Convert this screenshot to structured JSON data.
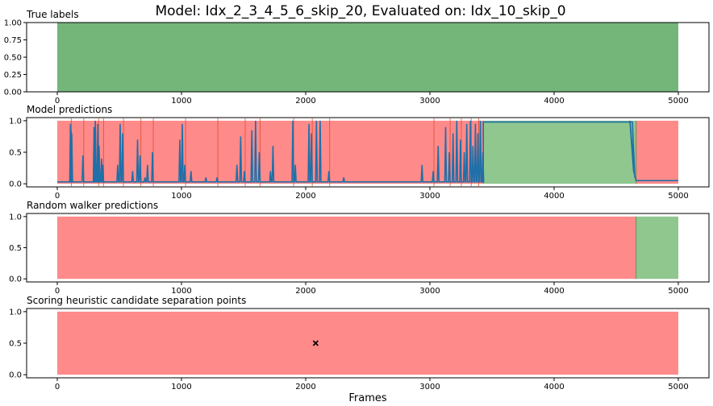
{
  "figure": {
    "title": "Model: Idx_2_3_4_5_6_skip_20, Evaluated on: Idx_10_skip_0",
    "xlabel": "Frames"
  },
  "colors": {
    "true_label": "#74b57a",
    "negative": "#ff8a8a",
    "positive": "#8fc78f",
    "prediction_line": "#1f6fa8",
    "transition_line": "#d94a2a"
  },
  "chart_data": [
    {
      "type": "area",
      "title": "True labels",
      "xlim": [
        0,
        5000
      ],
      "ylim": [
        0,
        1
      ],
      "x_ticks": [
        0,
        1000,
        2000,
        3000,
        4000,
        5000
      ],
      "y_ticks": [
        "0.00",
        "0.25",
        "0.50",
        "0.75",
        "1.00"
      ],
      "regions": [
        {
          "start": 0,
          "end": 5000,
          "label": 1
        }
      ]
    },
    {
      "type": "line",
      "title": "Model predictions",
      "xlim": [
        0,
        5000
      ],
      "ylim": [
        0,
        1
      ],
      "x_ticks": [
        0,
        1000,
        2000,
        3000,
        4000,
        5000
      ],
      "y_ticks": [
        "0.0",
        "0.5",
        "1.0"
      ],
      "regions": [
        {
          "start": 0,
          "end": 3430,
          "label": 0
        },
        {
          "start": 3430,
          "end": 4660,
          "label": 1
        },
        {
          "start": 4660,
          "end": 5000,
          "label": 0
        }
      ],
      "spikes": [
        [
          100,
          0.95
        ],
        [
          105,
          0.85
        ],
        [
          110,
          0.8
        ],
        [
          200,
          0.45
        ],
        [
          290,
          0.9
        ],
        [
          300,
          1.0
        ],
        [
          320,
          0.95
        ],
        [
          330,
          0.6
        ],
        [
          350,
          0.4
        ],
        [
          360,
          0.3
        ],
        [
          480,
          0.3
        ],
        [
          500,
          0.95
        ],
        [
          520,
          0.8
        ],
        [
          600,
          0.2
        ],
        [
          640,
          0.7
        ],
        [
          660,
          0.45
        ],
        [
          700,
          0.1
        ],
        [
          720,
          0.3
        ],
        [
          760,
          0.5
        ],
        [
          980,
          0.7
        ],
        [
          1000,
          0.95
        ],
        [
          1020,
          0.3
        ],
        [
          1070,
          0.2
        ],
        [
          1190,
          0.1
        ],
        [
          1280,
          0.1
        ],
        [
          1440,
          0.3
        ],
        [
          1470,
          0.75
        ],
        [
          1500,
          0.2
        ],
        [
          1560,
          0.85
        ],
        [
          1590,
          1.0
        ],
        [
          1620,
          0.5
        ],
        [
          1710,
          0.2
        ],
        [
          1730,
          0.6
        ],
        [
          1890,
          1.0
        ],
        [
          1910,
          0.3
        ],
        [
          2020,
          0.95
        ],
        [
          2040,
          0.8
        ],
        [
          2080,
          1.0
        ],
        [
          2110,
          1.0
        ],
        [
          2180,
          0.2
        ],
        [
          2300,
          0.1
        ],
        [
          2930,
          0.3
        ],
        [
          3020,
          0.2
        ],
        [
          3060,
          0.6
        ],
        [
          3120,
          0.9
        ],
        [
          3150,
          0.5
        ],
        [
          3180,
          0.8
        ],
        [
          3210,
          1.0
        ],
        [
          3240,
          0.7
        ],
        [
          3270,
          0.5
        ],
        [
          3290,
          0.95
        ],
        [
          3320,
          1.0
        ],
        [
          3340,
          0.6
        ],
        [
          3360,
          0.95
        ],
        [
          3380,
          0.8
        ],
        [
          3400,
          1.0
        ],
        [
          3420,
          0.5
        ]
      ],
      "plateau": {
        "start": 3430,
        "end": 4650,
        "value": 0.97
      },
      "tail": {
        "start": 4660,
        "end": 5000,
        "value": 0.05
      },
      "baseline": 0.03
    },
    {
      "type": "area",
      "title": "Random walker predictions",
      "xlim": [
        0,
        5000
      ],
      "ylim": [
        0,
        1
      ],
      "x_ticks": [
        0,
        1000,
        2000,
        3000,
        4000,
        5000
      ],
      "y_ticks": [
        "0.0",
        "0.5",
        "1.0"
      ],
      "regions": [
        {
          "start": 0,
          "end": 4660,
          "label": 0
        },
        {
          "start": 4660,
          "end": 5000,
          "label": 1
        }
      ]
    },
    {
      "type": "scatter",
      "title": "Scoring heuristic candidate separation points",
      "xlim": [
        0,
        5000
      ],
      "ylim": [
        0,
        1
      ],
      "x_ticks": [
        0,
        1000,
        2000,
        3000,
        4000,
        5000
      ],
      "y_ticks": [
        "0.0",
        "0.5",
        "1.0"
      ],
      "regions": [
        {
          "start": 0,
          "end": 5000,
          "label": 0
        }
      ],
      "points": [
        {
          "x": 2080,
          "y": 0.5,
          "marker": "x"
        }
      ]
    }
  ]
}
